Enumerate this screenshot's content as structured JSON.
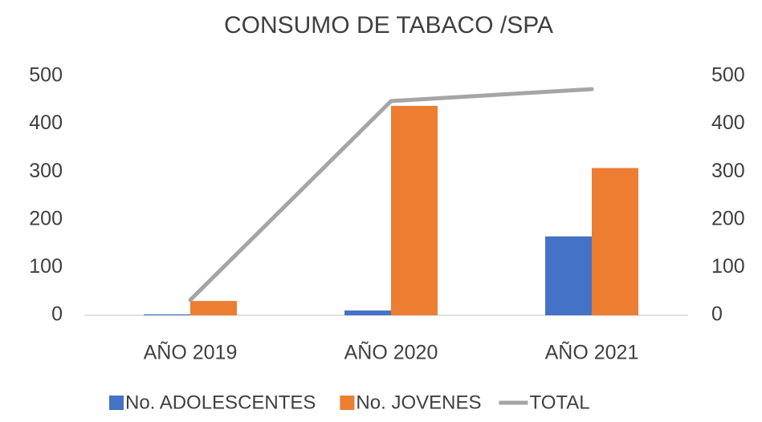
{
  "chart_data": {
    "type": "bar",
    "title": "CONSUMO DE TABACO /SPA",
    "categories": [
      "AÑO 2019",
      "AÑO 2020",
      "AÑO 2021"
    ],
    "series": [
      {
        "name": "No. ADOLESCENTES",
        "color": "#4472c4",
        "values": [
          2,
          10,
          165
        ]
      },
      {
        "name": "No. JOVENES",
        "color": "#ed7d31",
        "values": [
          30,
          438,
          308
        ]
      },
      {
        "name": "TOTAL",
        "color": "#a5a5a5",
        "type": "line",
        "axis": "y2",
        "values": [
          32,
          448,
          473
        ]
      }
    ],
    "ylim": [
      0,
      500
    ],
    "yticks": [
      0,
      100,
      200,
      300,
      400,
      500
    ],
    "y2lim": [
      0,
      500
    ],
    "y2ticks": [
      0,
      100,
      200,
      300,
      400,
      500
    ],
    "legend": "bottom"
  }
}
